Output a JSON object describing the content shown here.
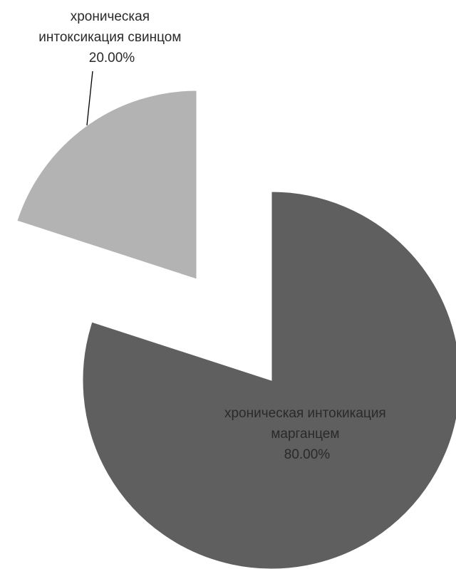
{
  "chart_data": {
    "type": "pie",
    "title": "",
    "exploded": true,
    "slices": [
      {
        "label": [
          "хроническая",
          "интоксикация свинцом"
        ],
        "percent_text": "20.00%",
        "value": 20,
        "color": "#b3b3b3"
      },
      {
        "label": [
          "хроническая интокикация",
          "марганцем"
        ],
        "percent_text": "80.00%",
        "value": 80,
        "color": "#5f5f5f"
      }
    ]
  }
}
